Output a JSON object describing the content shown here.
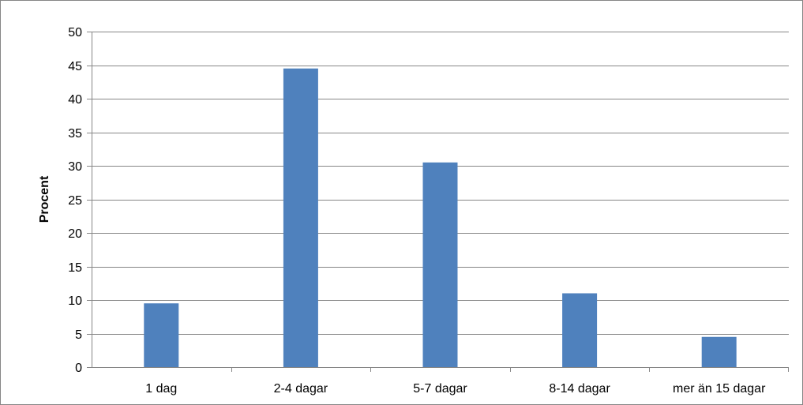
{
  "chart_data": {
    "type": "bar",
    "title": "",
    "xlabel": "",
    "ylabel": "Procent",
    "categories": [
      "1 dag",
      "2-4 dagar",
      "5-7 dagar",
      "8-14 dagar",
      "mer än 15 dagar"
    ],
    "values": [
      9.5,
      44.5,
      30.5,
      11,
      4.5
    ],
    "ylim": [
      0,
      50
    ],
    "yticks": [
      "0",
      "5",
      "10",
      "15",
      "20",
      "25",
      "30",
      "35",
      "40",
      "45",
      "50"
    ],
    "grid": true,
    "legend": "none",
    "colors": {
      "bar": "#4F81BD",
      "grid": "#868686",
      "axis": "#868686"
    }
  }
}
